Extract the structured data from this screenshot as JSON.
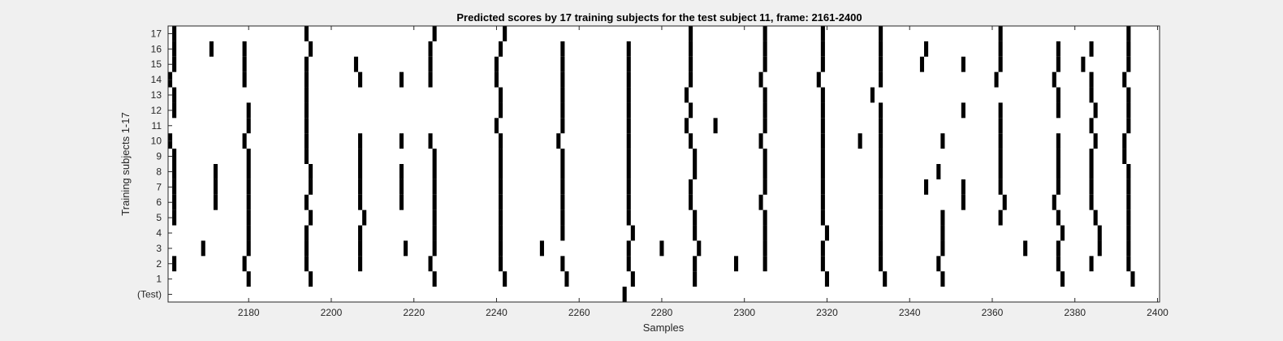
{
  "chart_data": {
    "type": "raster",
    "title": "Predicted scores by 17 training subjects for the test subject 11, frame: 2161-2400",
    "xlabel": "Samples",
    "ylabel": "Training subjects 1-17",
    "xlim": [
      2161,
      2400
    ],
    "xticks": [
      2180,
      2200,
      2220,
      2240,
      2260,
      2280,
      2300,
      2320,
      2340,
      2360,
      2380,
      2400
    ],
    "rows": [
      "(Test)",
      "1",
      "2",
      "3",
      "4",
      "5",
      "6",
      "7",
      "8",
      "9",
      "10",
      "11",
      "12",
      "13",
      "14",
      "15",
      "16",
      "17"
    ],
    "event_width": 1,
    "events": [
      {
        "row": "(Test)",
        "x": [
          2271
        ]
      },
      {
        "row": "1",
        "x": [
          2180,
          2195,
          2225,
          2242,
          2257,
          2273,
          2288,
          2320,
          2334,
          2348,
          2377,
          2394
        ]
      },
      {
        "row": "2",
        "x": [
          2162,
          2179,
          2194,
          2207,
          2224,
          2241,
          2256,
          2272,
          2288,
          2298,
          2305,
          2319,
          2333,
          2347,
          2376,
          2384,
          2393
        ]
      },
      {
        "row": "3",
        "x": [
          2169,
          2180,
          2194,
          2207,
          2218,
          2225,
          2241,
          2251,
          2272,
          2280,
          2289,
          2305,
          2319,
          2333,
          2348,
          2368,
          2376,
          2386,
          2393
        ]
      },
      {
        "row": "4",
        "x": [
          2180,
          2194,
          2207,
          2225,
          2241,
          2256,
          2273,
          2288,
          2305,
          2320,
          2333,
          2348,
          2377,
          2386,
          2393
        ]
      },
      {
        "row": "5",
        "x": [
          2162,
          2180,
          2195,
          2208,
          2225,
          2241,
          2256,
          2272,
          2288,
          2305,
          2319,
          2333,
          2348,
          2362,
          2376,
          2385,
          2393
        ]
      },
      {
        "row": "6",
        "x": [
          2162,
          2172,
          2180,
          2194,
          2207,
          2217,
          2225,
          2241,
          2256,
          2272,
          2287,
          2304,
          2319,
          2333,
          2353,
          2363,
          2375,
          2384,
          2393
        ]
      },
      {
        "row": "7",
        "x": [
          2162,
          2172,
          2180,
          2195,
          2207,
          2217,
          2225,
          2241,
          2256,
          2272,
          2287,
          2305,
          2319,
          2333,
          2344,
          2353,
          2362,
          2376,
          2384,
          2393
        ]
      },
      {
        "row": "8",
        "x": [
          2162,
          2172,
          2180,
          2195,
          2207,
          2217,
          2225,
          2241,
          2256,
          2272,
          2288,
          2305,
          2319,
          2333,
          2347,
          2362,
          2376,
          2384,
          2393
        ]
      },
      {
        "row": "9",
        "x": [
          2162,
          2180,
          2194,
          2207,
          2225,
          2241,
          2256,
          2272,
          2288,
          2305,
          2319,
          2333,
          2362,
          2376,
          2384,
          2392
        ]
      },
      {
        "row": "10",
        "x": [
          2161,
          2179,
          2194,
          2207,
          2217,
          2224,
          2241,
          2255,
          2272,
          2287,
          2304,
          2319,
          2328,
          2333,
          2348,
          2362,
          2376,
          2385,
          2392
        ]
      },
      {
        "row": "11",
        "x": [
          2180,
          2194,
          2240,
          2256,
          2272,
          2286,
          2293,
          2305,
          2319,
          2333,
          2362,
          2384,
          2393
        ]
      },
      {
        "row": "12",
        "x": [
          2162,
          2180,
          2194,
          2241,
          2256,
          2272,
          2287,
          2305,
          2319,
          2333,
          2353,
          2362,
          2376,
          2385,
          2393
        ]
      },
      {
        "row": "13",
        "x": [
          2162,
          2194,
          2241,
          2256,
          2272,
          2286,
          2305,
          2319,
          2331,
          2376,
          2384,
          2393
        ]
      },
      {
        "row": "14",
        "x": [
          2161,
          2179,
          2194,
          2207,
          2217,
          2224,
          2240,
          2256,
          2272,
          2287,
          2304,
          2318,
          2333,
          2361,
          2375,
          2384,
          2392
        ]
      },
      {
        "row": "15",
        "x": [
          2162,
          2179,
          2194,
          2206,
          2224,
          2240,
          2256,
          2272,
          2287,
          2305,
          2319,
          2333,
          2343,
          2353,
          2362,
          2376,
          2382,
          2393
        ]
      },
      {
        "row": "16",
        "x": [
          2162,
          2171,
          2179,
          2195,
          2224,
          2241,
          2256,
          2272,
          2287,
          2305,
          2319,
          2333,
          2344,
          2362,
          2376,
          2384,
          2393
        ]
      },
      {
        "row": "17",
        "x": [
          2162,
          2194,
          2225,
          2242,
          2287,
          2305,
          2319,
          2333,
          2362,
          2393
        ]
      }
    ],
    "grid": false,
    "colors": {
      "event": "#000000",
      "axes_bg": "#ffffff",
      "figure_bg": "#f0f0f0",
      "axis": "#262626"
    }
  }
}
